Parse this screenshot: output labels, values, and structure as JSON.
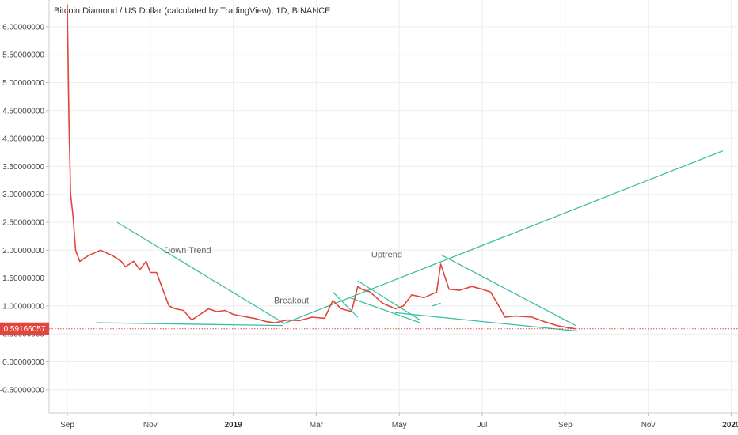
{
  "chart_data": {
    "type": "line",
    "title": "Bitcoin Diamond / US Dollar (calculated by TradingView), 1D, BINANCE",
    "ylim": [
      -0.9,
      6.4
    ],
    "y_ticks": [
      "6.00000000",
      "5.50000000",
      "5.00000000",
      "4.50000000",
      "4.00000000",
      "3.50000000",
      "3.00000000",
      "2.50000000",
      "2.00000000",
      "1.50000000",
      "1.00000000",
      "0.50000000",
      "0.00000000",
      "-0.50000000"
    ],
    "y_tick_values": [
      6.0,
      5.5,
      5.0,
      4.5,
      4.0,
      3.5,
      3.0,
      2.5,
      2.0,
      1.5,
      1.0,
      0.5,
      0.0,
      -0.5
    ],
    "x_ticks": [
      {
        "label": "Sep",
        "t": 0,
        "year": false
      },
      {
        "label": "Nov",
        "t": 2,
        "year": false
      },
      {
        "label": "2019",
        "t": 4,
        "year": true
      },
      {
        "label": "Mar",
        "t": 6,
        "year": false
      },
      {
        "label": "May",
        "t": 8,
        "year": false
      },
      {
        "label": "Jul",
        "t": 10,
        "year": false
      },
      {
        "label": "Sep",
        "t": 12,
        "year": false
      },
      {
        "label": "Nov",
        "t": 14,
        "year": false
      },
      {
        "label": "2020",
        "t": 16,
        "year": true
      }
    ],
    "last_price": 0.59166057,
    "last_price_label": "0.59166057",
    "price": [
      [
        0.0,
        6.4
      ],
      [
        0.04,
        4.3
      ],
      [
        0.08,
        3.0
      ],
      [
        0.14,
        2.6
      ],
      [
        0.2,
        2.0
      ],
      [
        0.3,
        1.8
      ],
      [
        0.5,
        1.9
      ],
      [
        0.8,
        2.0
      ],
      [
        1.1,
        1.9
      ],
      [
        1.3,
        1.8
      ],
      [
        1.4,
        1.7
      ],
      [
        1.6,
        1.8
      ],
      [
        1.75,
        1.65
      ],
      [
        1.9,
        1.8
      ],
      [
        2.0,
        1.6
      ],
      [
        2.15,
        1.6
      ],
      [
        2.3,
        1.3
      ],
      [
        2.45,
        1.0
      ],
      [
        2.6,
        0.95
      ],
      [
        2.8,
        0.92
      ],
      [
        3.0,
        0.75
      ],
      [
        3.2,
        0.85
      ],
      [
        3.4,
        0.95
      ],
      [
        3.6,
        0.9
      ],
      [
        3.8,
        0.92
      ],
      [
        4.0,
        0.85
      ],
      [
        4.2,
        0.82
      ],
      [
        4.5,
        0.78
      ],
      [
        4.8,
        0.72
      ],
      [
        5.0,
        0.7
      ],
      [
        5.3,
        0.75
      ],
      [
        5.6,
        0.74
      ],
      [
        5.9,
        0.8
      ],
      [
        6.2,
        0.78
      ],
      [
        6.4,
        1.1
      ],
      [
        6.6,
        0.95
      ],
      [
        6.85,
        0.9
      ],
      [
        7.0,
        1.35
      ],
      [
        7.1,
        1.3
      ],
      [
        7.3,
        1.25
      ],
      [
        7.6,
        1.05
      ],
      [
        7.9,
        0.95
      ],
      [
        8.1,
        1.0
      ],
      [
        8.3,
        1.2
      ],
      [
        8.6,
        1.15
      ],
      [
        8.9,
        1.25
      ],
      [
        9.0,
        1.75
      ],
      [
        9.2,
        1.3
      ],
      [
        9.45,
        1.28
      ],
      [
        9.75,
        1.35
      ],
      [
        10.0,
        1.3
      ],
      [
        10.2,
        1.25
      ],
      [
        10.4,
        1.0
      ],
      [
        10.55,
        0.8
      ],
      [
        10.8,
        0.82
      ],
      [
        11.2,
        0.8
      ],
      [
        11.5,
        0.72
      ],
      [
        11.8,
        0.65
      ],
      [
        12.0,
        0.62
      ],
      [
        12.25,
        0.59
      ]
    ],
    "trendlines": [
      [
        [
          1.2,
          2.5
        ],
        [
          5.2,
          0.7
        ]
      ],
      [
        [
          0.7,
          0.7
        ],
        [
          5.2,
          0.65
        ]
      ],
      [
        [
          5.2,
          0.68
        ],
        [
          15.8,
          3.78
        ]
      ],
      [
        [
          6.4,
          1.25
        ],
        [
          7.0,
          0.8
        ]
      ],
      [
        [
          7.0,
          1.45
        ],
        [
          8.5,
          0.75
        ]
      ],
      [
        [
          6.8,
          1.15
        ],
        [
          8.5,
          0.7
        ]
      ],
      [
        [
          7.9,
          0.88
        ],
        [
          12.3,
          0.55
        ]
      ],
      [
        [
          9.0,
          1.92
        ],
        [
          12.25,
          0.65
        ]
      ],
      [
        [
          8.8,
          1.0
        ],
        [
          9.0,
          1.05
        ]
      ]
    ],
    "annotations": [
      {
        "text": "Down Trend",
        "t": 2.9,
        "v": 1.95
      },
      {
        "text": "Breakout",
        "t": 5.4,
        "v": 1.05
      },
      {
        "text": "Uptrend",
        "t": 7.7,
        "v": 1.87
      }
    ],
    "colors": {
      "price_line": "#e2453c",
      "trendline": "#3dbfa5",
      "grid": "#eeeeee",
      "last_price_tag": "#e2453c"
    }
  }
}
